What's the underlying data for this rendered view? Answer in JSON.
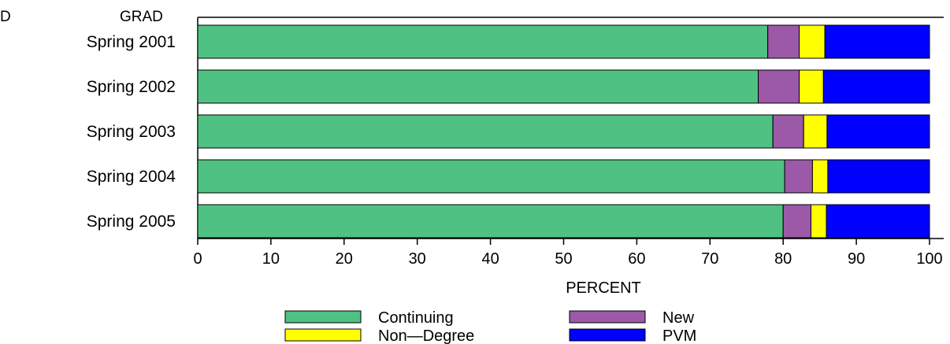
{
  "chart_data": {
    "type": "bar",
    "orientation": "horizontal",
    "stacked": true,
    "group_label": "GRAD",
    "corner_glyph": "D",
    "categories": [
      "Spring  2001",
      "Spring  2002",
      "Spring  2003",
      "Spring  2004",
      "Spring  2005"
    ],
    "series": [
      {
        "name": "Continuing",
        "color": "#4fc182",
        "values": [
          77.9,
          76.6,
          78.6,
          80.2,
          80.0
        ]
      },
      {
        "name": "New",
        "color": "#9b59a8",
        "values": [
          4.3,
          5.6,
          4.2,
          3.8,
          3.8
        ]
      },
      {
        "name": "Non—Degree",
        "color": "#ffff00",
        "values": [
          3.5,
          3.3,
          3.2,
          2.1,
          2.1
        ]
      },
      {
        "name": "PVM",
        "color": "#0000ff",
        "values": [
          14.3,
          14.5,
          14.0,
          13.9,
          14.1
        ]
      }
    ],
    "xlabel": "PERCENT",
    "xlim": [
      0,
      100
    ],
    "xticks": [
      0,
      10,
      20,
      30,
      40,
      50,
      60,
      70,
      80,
      90,
      100
    ],
    "grid": false,
    "legend_position": "bottom"
  }
}
